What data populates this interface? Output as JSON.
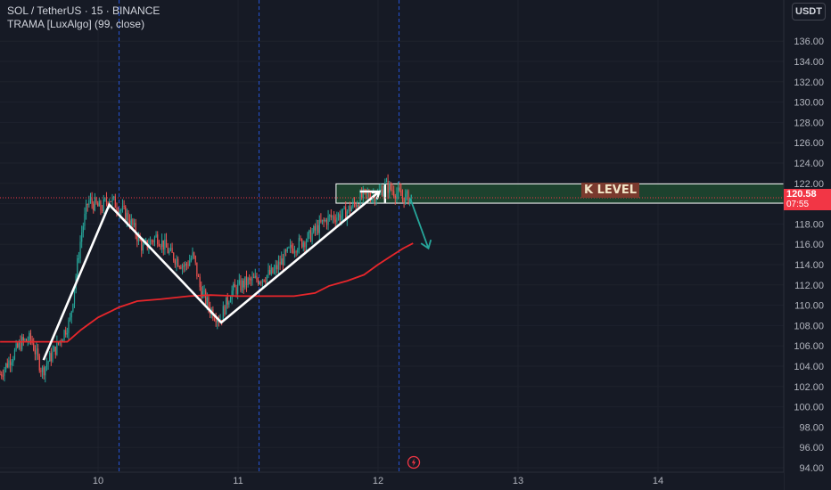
{
  "header": {
    "symbol_line": "SOL / TetherUS · 15 · BINANCE",
    "indicator_line": "TRAMA [LuxAlgo] (99, close)",
    "currency": "USDT"
  },
  "price_badge": {
    "price": "120.58",
    "countdown": "07:55"
  },
  "colors": {
    "background": "#161a25",
    "up_candle": "#26a69a",
    "down_candle": "#ef5350",
    "trama_line": "#e8262b",
    "zone_fill": "#1f4a30",
    "zone_border": "#ffffff",
    "pattern_lines": "#ffffff",
    "projection_arrow": "#26a69a",
    "session_lines": "#2962ff",
    "price_badge": "#f23645"
  },
  "chart_data": {
    "type": "candlestick",
    "title": "SOL / TetherUS · 15 · BINANCE",
    "y_axis": {
      "min": 94,
      "max": 137,
      "ticks": [
        136,
        134,
        132,
        130,
        128,
        126,
        124,
        122,
        120,
        118,
        116,
        114,
        112,
        110,
        108,
        106,
        104,
        102,
        100,
        98,
        96,
        94
      ],
      "tick_labels": [
        "136.00",
        "134.00",
        "132.00",
        "130.00",
        "128.00",
        "126.00",
        "124.00",
        "122.00",
        "120.00",
        "118.00",
        "116.00",
        "114.00",
        "112.00",
        "110.00",
        "108.00",
        "106.00",
        "104.00",
        "102.00",
        "100.00",
        "98.00",
        "96.00",
        "94.00"
      ]
    },
    "x_axis": {
      "min": 9.3,
      "max": 15.25,
      "ticks": [
        10,
        11,
        12,
        13,
        14
      ],
      "tick_labels": [
        "10",
        "11",
        "12",
        "13",
        "14"
      ]
    },
    "session_separators": [
      10.15,
      11.15,
      12.15
    ],
    "current_price": 120.58,
    "price_path": [
      [
        9.3,
        103.2
      ],
      [
        9.45,
        106.3
      ],
      [
        9.52,
        106.7
      ],
      [
        9.6,
        103.5
      ],
      [
        9.7,
        105.8
      ],
      [
        9.8,
        108.5
      ],
      [
        9.88,
        117.0
      ],
      [
        9.93,
        120.3
      ],
      [
        10.02,
        119.5
      ],
      [
        10.08,
        120.6
      ],
      [
        10.15,
        119.6
      ],
      [
        10.22,
        118.6
      ],
      [
        10.32,
        115.6
      ],
      [
        10.42,
        116.8
      ],
      [
        10.52,
        115.0
      ],
      [
        10.62,
        113.8
      ],
      [
        10.68,
        114.9
      ],
      [
        10.73,
        111.6
      ],
      [
        10.8,
        109.6
      ],
      [
        10.87,
        108.6
      ],
      [
        10.95,
        111.3
      ],
      [
        11.05,
        112.2
      ],
      [
        11.15,
        112.6
      ],
      [
        11.25,
        113.2
      ],
      [
        11.38,
        115.6
      ],
      [
        11.5,
        116.6
      ],
      [
        11.58,
        117.8
      ],
      [
        11.65,
        118.6
      ],
      [
        11.75,
        118.9
      ],
      [
        11.82,
        119.8
      ],
      [
        11.9,
        120.8
      ],
      [
        12.0,
        120.9
      ],
      [
        12.05,
        121.8
      ],
      [
        12.12,
        121.2
      ],
      [
        12.18,
        120.6
      ],
      [
        12.24,
        120.6
      ]
    ],
    "series": [
      {
        "name": "TRAMA [LuxAlgo] (99, close)",
        "points": [
          [
            9.3,
            106.4
          ],
          [
            9.65,
            106.4
          ],
          [
            9.78,
            106.4
          ],
          [
            9.88,
            107.6
          ],
          [
            10.0,
            108.8
          ],
          [
            10.15,
            109.8
          ],
          [
            10.28,
            110.4
          ],
          [
            10.45,
            110.6
          ],
          [
            10.65,
            110.9
          ],
          [
            10.8,
            111.0
          ],
          [
            11.0,
            110.9
          ],
          [
            11.2,
            110.9
          ],
          [
            11.4,
            110.9
          ],
          [
            11.55,
            111.2
          ],
          [
            11.65,
            111.9
          ],
          [
            11.78,
            112.4
          ],
          [
            11.9,
            113.0
          ],
          [
            12.0,
            114.0
          ],
          [
            12.1,
            114.9
          ],
          [
            12.18,
            115.6
          ],
          [
            12.25,
            116.1
          ]
        ]
      }
    ],
    "zone": {
      "x_start": 11.7,
      "x_end": 15.05,
      "y_low": 120.05,
      "y_high": 121.95,
      "label": "K LEVEL"
    },
    "pattern_lines": [
      [
        9.61,
        104.6
      ],
      [
        10.08,
        119.9
      ],
      [
        10.88,
        108.3
      ],
      [
        12.01,
        121.2
      ]
    ],
    "small_markers": [
      [
        [
          11.87,
          121.2
        ],
        [
          12.0,
          121.2
        ]
      ],
      [
        [
          12.05,
          120.1
        ],
        [
          12.05,
          121.9
        ]
      ]
    ],
    "projection_arrow": {
      "from": [
        12.23,
        120.5
      ],
      "to": [
        12.36,
        115.6
      ]
    }
  }
}
